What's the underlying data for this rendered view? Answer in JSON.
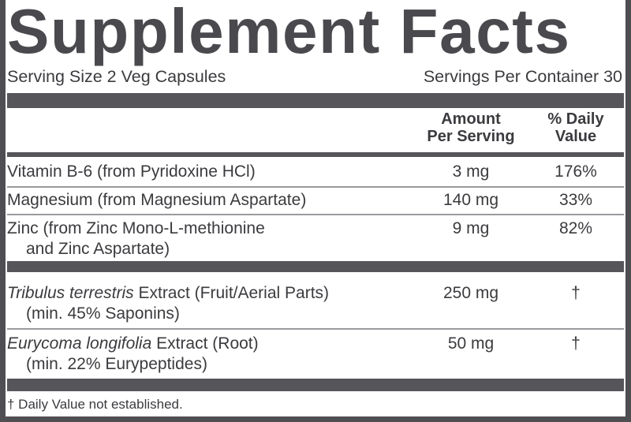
{
  "title": "Supplement Facts",
  "serving_size": "Serving Size 2 Veg Capsules",
  "servings_per_container": "Servings Per Container 30",
  "header": {
    "amount_line1": "Amount",
    "amount_line2": "Per Serving",
    "dv_line1": "% Daily",
    "dv_line2": "Value"
  },
  "rows": [
    {
      "name": "Vitamin B-6 (from Pyridoxine HCl)",
      "amount": "3 mg",
      "dv": "176%"
    },
    {
      "name": "Magnesium (from Magnesium Aspartate)",
      "amount": "140 mg",
      "dv": "33%"
    },
    {
      "name": "Zinc (from Zinc Mono-L-methionine",
      "name2": "and Zinc Aspartate)",
      "amount": "9 mg",
      "dv": "82%"
    },
    {
      "name_italic": "Tribulus terrestris",
      "name": " Extract (Fruit/Aerial Parts)",
      "name2": "(min. 45% Saponins)",
      "amount": "250 mg",
      "dv": "†"
    },
    {
      "name_italic": "Eurycoma longifolia",
      "name": " Extract (Root)",
      "name2": "(min. 22% Eurypeptides)",
      "amount": "50 mg",
      "dv": "†"
    }
  ],
  "footnote": "† Daily Value not established.",
  "colors": {
    "border": "#4f4f53",
    "bar": "#55555a",
    "text": "#3b3b3f"
  }
}
